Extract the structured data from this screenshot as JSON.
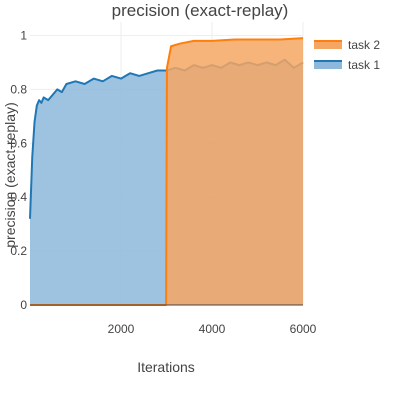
{
  "chart_data": {
    "type": "area",
    "title": "precision (exact-replay)",
    "xlabel": "Iterations",
    "ylabel": "precision (exact-replay)",
    "xlim": [
      0,
      6000
    ],
    "ylim": [
      0,
      1.05
    ],
    "xticks": [
      2000,
      4000,
      6000
    ],
    "xtick_labels": [
      "2000",
      "4000",
      "6000"
    ],
    "yticks": [
      0,
      0.2,
      0.4,
      0.6,
      0.8,
      1
    ],
    "ytick_labels": [
      "0",
      "0.2",
      "0.4",
      "0.6",
      "0.8",
      "1"
    ],
    "grid": true,
    "legend_position": "top-right",
    "series": [
      {
        "name": "task 2",
        "color": "#ff7f0e",
        "fill_color": "#f5a663",
        "x": [
          0,
          200,
          400,
          1000,
          2000,
          2990,
          3010,
          3100,
          3300,
          3600,
          4000,
          4500,
          5000,
          5500,
          6000
        ],
        "values": [
          0,
          0,
          0,
          0,
          0,
          0,
          0.88,
          0.96,
          0.97,
          0.98,
          0.98,
          0.985,
          0.985,
          0.985,
          0.99
        ]
      },
      {
        "name": "task 1",
        "color": "#1f77b4",
        "fill_color": "#8db8dc",
        "x": [
          0,
          50,
          100,
          150,
          200,
          250,
          300,
          400,
          500,
          600,
          700,
          800,
          1000,
          1200,
          1400,
          1600,
          1800,
          2000,
          2200,
          2400,
          2600,
          2800,
          3000,
          3200,
          3400,
          3600,
          3800,
          4000,
          4200,
          4400,
          4600,
          4800,
          5000,
          5200,
          5400,
          5600,
          5800,
          6000
        ],
        "values": [
          0.32,
          0.55,
          0.68,
          0.74,
          0.76,
          0.75,
          0.77,
          0.76,
          0.78,
          0.8,
          0.79,
          0.82,
          0.83,
          0.82,
          0.84,
          0.83,
          0.85,
          0.84,
          0.86,
          0.85,
          0.86,
          0.87,
          0.87,
          0.88,
          0.87,
          0.89,
          0.88,
          0.89,
          0.88,
          0.9,
          0.89,
          0.9,
          0.89,
          0.9,
          0.89,
          0.91,
          0.88,
          0.9
        ]
      }
    ]
  }
}
